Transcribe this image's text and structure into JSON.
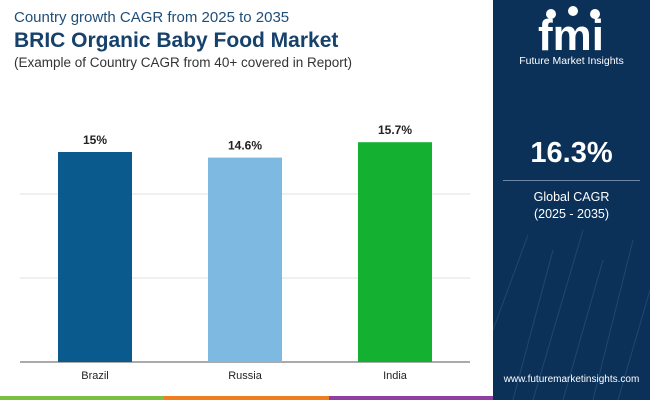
{
  "header": {
    "subtitle": "Country growth CAGR from 2025 to 2035",
    "title": "BRIC Organic Baby Food Market",
    "note": "(Example of Country CAGR from 40+ covered in Report)"
  },
  "chart_data": {
    "type": "bar",
    "categories": [
      "Brazil",
      "Russia",
      "India"
    ],
    "values": [
      15,
      14.6,
      15.7
    ],
    "value_labels": [
      "15%",
      "14.6%",
      "15.7%"
    ],
    "bar_colors": [
      "#0a5a8e",
      "#7db9e0",
      "#14b032"
    ],
    "title": "",
    "xlabel": "",
    "ylabel": "",
    "ylim": [
      0,
      18
    ],
    "grid": true
  },
  "sidebar": {
    "logo_text": "fmi",
    "logo_sub": "Future Market Insights",
    "big_value": "16.3%",
    "label_line1": "Global CAGR",
    "label_line2": "(2025 - 2035)",
    "url": "www.futuremarketinsights.com"
  },
  "colors": {
    "title": "#16416b",
    "sidebar_bg": "#0c3159",
    "bottom_bar": [
      "#7ac143",
      "#ef7d22",
      "#8e3fa1"
    ]
  }
}
